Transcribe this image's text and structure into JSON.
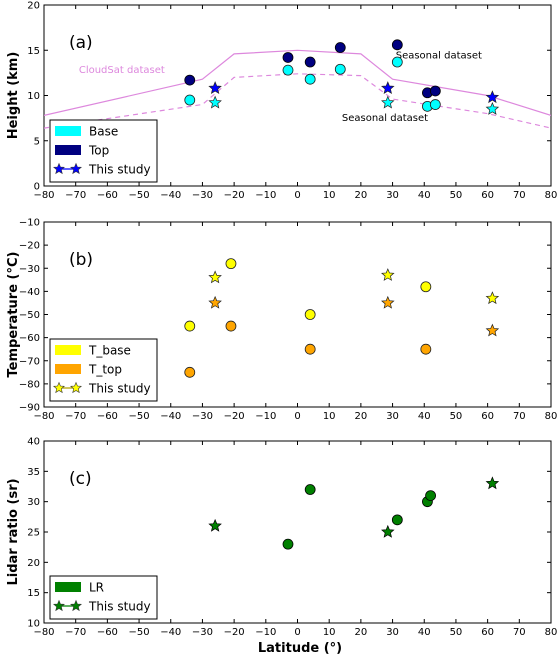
{
  "xlabel": "Latitude (°)",
  "chart_data": [
    {
      "type": "scatter",
      "panel_label": "(a)",
      "ylabel": "Height (km)",
      "xlim": [
        -80,
        80
      ],
      "ylim": [
        0,
        20
      ],
      "xticks": [
        -80,
        -70,
        -60,
        -50,
        -40,
        -30,
        -20,
        -10,
        0,
        10,
        20,
        30,
        40,
        50,
        60,
        70,
        80
      ],
      "yticks": [
        0,
        5,
        10,
        15,
        20
      ],
      "series": [
        {
          "name": "Base",
          "marker": "circle",
          "color": "#00ffff",
          "x": [
            -34,
            -3,
            4,
            13.5,
            31.5,
            41,
            43.5
          ],
          "y": [
            9.5,
            12.8,
            11.8,
            12.9,
            13.7,
            8.8,
            9.0
          ]
        },
        {
          "name": "Top",
          "marker": "circle",
          "color": "#000080",
          "x": [
            -34,
            -3,
            4,
            13.5,
            31.5,
            41,
            43.5
          ],
          "y": [
            11.7,
            14.2,
            13.7,
            15.3,
            15.6,
            10.3,
            10.5
          ]
        },
        {
          "name": "This study",
          "marker": "star",
          "color": "#0000ff",
          "legend_stroke": "#0000ff",
          "x": [
            -26,
            28.5,
            61.5
          ],
          "y": [
            10.8,
            10.8,
            9.8
          ]
        },
        {
          "name": "",
          "marker": "star",
          "color": "#00ffff",
          "x": [
            -26,
            28.5,
            61.5
          ],
          "y": [
            9.2,
            9.2,
            8.5
          ]
        }
      ],
      "lines": [
        {
          "label": "CloudSat dataset",
          "dash": false,
          "color": "#dd88dd",
          "x": [
            -80,
            -30,
            -20,
            0,
            20,
            30,
            60,
            80
          ],
          "y": [
            7.8,
            11.8,
            14.6,
            15.0,
            14.6,
            11.8,
            10.0,
            7.8
          ]
        },
        {
          "label": "Seasonal dataset",
          "dash": true,
          "color": "#dd88dd",
          "x": [
            -80,
            -30,
            -20,
            0,
            20,
            30,
            60,
            80
          ],
          "y": [
            6.4,
            9.0,
            12.0,
            12.4,
            12.2,
            9.6,
            8.0,
            6.4
          ]
        }
      ],
      "annotations": [
        {
          "text": "CloudSat dataset",
          "x": -69,
          "y": 12.5,
          "color": "#dd88dd"
        },
        {
          "text": "Seasonal dataset",
          "x": 31,
          "y": 14.1,
          "color": "#000000"
        },
        {
          "text": "Seasonal dataset",
          "x": 14,
          "y": 7.2,
          "color": "#000000"
        }
      ]
    },
    {
      "type": "scatter",
      "panel_label": "(b)",
      "ylabel": "Temperature (°C)",
      "xlim": [
        -80,
        80
      ],
      "ylim": [
        -90,
        -10
      ],
      "xticks": [
        -80,
        -70,
        -60,
        -50,
        -40,
        -30,
        -20,
        -10,
        0,
        10,
        20,
        30,
        40,
        50,
        60,
        70,
        80
      ],
      "yticks": [
        -90,
        -80,
        -70,
        -60,
        -50,
        -40,
        -30,
        -20,
        -10
      ],
      "series": [
        {
          "name": "T_base",
          "marker": "circle",
          "color": "#ffff00",
          "x": [
            -34,
            -21,
            4,
            40.5
          ],
          "y": [
            -55,
            -28,
            -50,
            -38
          ]
        },
        {
          "name": "T_top",
          "marker": "circle",
          "color": "#ffa500",
          "x": [
            -34,
            -21,
            4,
            40.5
          ],
          "y": [
            -75,
            -55,
            -65,
            -65
          ]
        },
        {
          "name": "This study",
          "marker": "star",
          "color": "#ffff00",
          "legend_stroke": "#b0a000",
          "x": [
            -26,
            28.5,
            61.5
          ],
          "y": [
            -34,
            -33,
            -43
          ]
        },
        {
          "name": "",
          "marker": "star",
          "color": "#ffa500",
          "x": [
            -26,
            28.5,
            61.5
          ],
          "y": [
            -45,
            -45,
            -57
          ]
        }
      ],
      "lines": [],
      "annotations": []
    },
    {
      "type": "scatter",
      "panel_label": "(c)",
      "ylabel": "Lidar ratio (sr)",
      "xlim": [
        -80,
        80
      ],
      "ylim": [
        10,
        40
      ],
      "xticks": [
        -80,
        -70,
        -60,
        -50,
        -40,
        -30,
        -20,
        -10,
        0,
        10,
        20,
        30,
        40,
        50,
        60,
        70,
        80
      ],
      "yticks": [
        10,
        15,
        20,
        25,
        30,
        35,
        40
      ],
      "series": [
        {
          "name": "LR",
          "marker": "circle",
          "color": "#008000",
          "x": [
            -3,
            4,
            31.5,
            41,
            42
          ],
          "y": [
            23,
            32,
            27,
            30,
            31
          ]
        },
        {
          "name": "This study",
          "marker": "star",
          "color": "#008000",
          "legend_stroke": "#008000",
          "x": [
            -26,
            28.5,
            61.5
          ],
          "y": [
            26,
            25,
            33
          ]
        }
      ],
      "lines": [],
      "annotations": []
    }
  ]
}
